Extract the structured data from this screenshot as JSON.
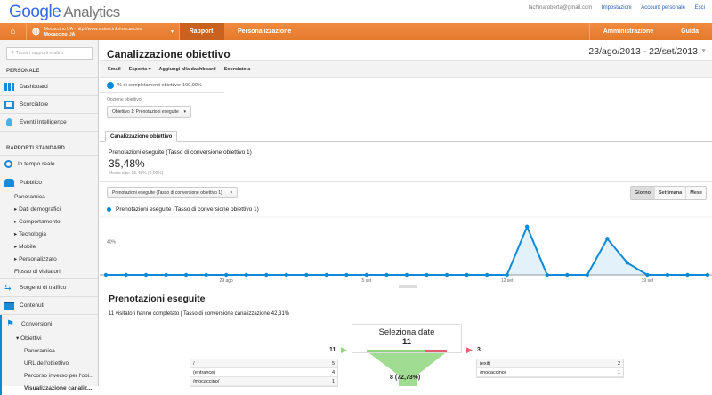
{
  "header": {
    "logo": "Google",
    "product": "Analytics",
    "email": "lachinaroberta@gmail.com",
    "links": [
      "Impostazioni",
      "Account personale",
      "Esci"
    ]
  },
  "navbar": {
    "account_url": "Mocaccino UA - http://www.visioni.info/mocaccino",
    "account_name": "Mocaccino UA",
    "tabs": [
      "Rapporti",
      "Personalizzazione"
    ],
    "right_tabs": [
      "Amministrazione",
      "Guida"
    ],
    "color": "#e8812f"
  },
  "sidebar": {
    "search_placeholder": "Trova i rapporti e altro",
    "personal_heading": "PERSONALE",
    "personal": [
      "Dashboard",
      "Scorciatoie",
      "Eventi Intelligence"
    ],
    "standard_heading": "RAPPORTI STANDARD",
    "realtime": "In tempo reale",
    "audience": "Pubblico",
    "audience_sub": [
      "Panoramica",
      "▸ Dati demografici",
      "▸ Comportamento",
      "▸ Tecnologia",
      "▸ Mobile",
      "▸ Personalizzato",
      "Flusso di visitatori"
    ],
    "traffic": "Sorgenti di traffico",
    "content": "Contenuti",
    "conversions": "Conversioni",
    "goals": "▾ Obiettivi",
    "goals_sub": [
      "Panoramica",
      "URL dell'obiettivo",
      "Percorso inverso per l'obi...",
      "Visualizzazione canaliz..."
    ]
  },
  "main": {
    "title": "Canalizzazione obiettivo",
    "date_range": "23/ago/2013 - 22/set/2013",
    "toolbar": [
      "Email",
      "Esporta ▾",
      "Aggiungi alla dashboard",
      "Scorciatoia"
    ],
    "completion": "% di completamenti obiettivo: 100,00%",
    "goal_option_label": "Opzione obiettivo:",
    "goal_option_value": "Obiettivo 1: Prenotazioni eseguite",
    "tab": "Canalizzazione obiettivo",
    "metric_label": "Prenotazioni eseguite (Tasso di conversione obiettivo 1)",
    "metric_value": "35,48%",
    "metric_avg": "Media sito: 35,48% (0,00%)",
    "metric_select": "Prenotazioni eseguite (Tasso di conversione obiettivo 1)",
    "period": [
      "Giorno",
      "Settimana",
      "Mese"
    ],
    "section_title": "Prenotazioni eseguite",
    "section_sub": "11 visitatori hanno completato | Tasso di conversione canalizzazione 42,31%",
    "funnel": {
      "entries": "11",
      "step_name": "Seleziona date",
      "step_value": "11",
      "exits": "3",
      "continued": "8 (72,73%)",
      "entry_rows": [
        {
          "page": "/",
          "count": "5"
        },
        {
          "page": "(entrance)",
          "count": "4"
        },
        {
          "page": "/mocaccino/",
          "count": "1"
        }
      ],
      "exit_rows": [
        {
          "page": "(exit)",
          "count": "2"
        },
        {
          "page": "/mocaccino/",
          "count": "1"
        }
      ],
      "completion_fraction": 0.727,
      "green": "#8fd67e",
      "red": "#e06070"
    }
  },
  "chart_data": {
    "type": "area",
    "series": [
      {
        "name": "Prenotazioni eseguite (Tasso di conversione obiettivo 1)",
        "color": "#0d8ad6",
        "x": [
          "23 ago",
          "24 ago",
          "25 ago",
          "26 ago",
          "27 ago",
          "28 ago",
          "29 ago",
          "30 ago",
          "31 ago",
          "1 set",
          "2 set",
          "3 set",
          "4 set",
          "5 set",
          "6 set",
          "7 set",
          "8 set",
          "9 set",
          "10 set",
          "11 set",
          "12 set",
          "13 set",
          "14 set",
          "15 set",
          "16 set",
          "17 set",
          "18 set",
          "19 set",
          "20 set",
          "21 set",
          "22 set"
        ],
        "values": [
          0,
          0,
          0,
          0,
          0,
          0,
          0,
          0,
          0,
          0,
          0,
          0,
          0,
          0,
          0,
          0,
          0,
          0,
          0,
          0,
          0,
          66.67,
          0,
          0,
          0,
          50,
          16.67,
          0,
          0,
          0,
          0
        ]
      }
    ],
    "yticks": [
      "40%",
      "80%"
    ],
    "ylim": [
      0,
      80
    ],
    "xticks": [
      "29 ago",
      "5 set",
      "12 set",
      "19 set"
    ],
    "grid": true
  }
}
